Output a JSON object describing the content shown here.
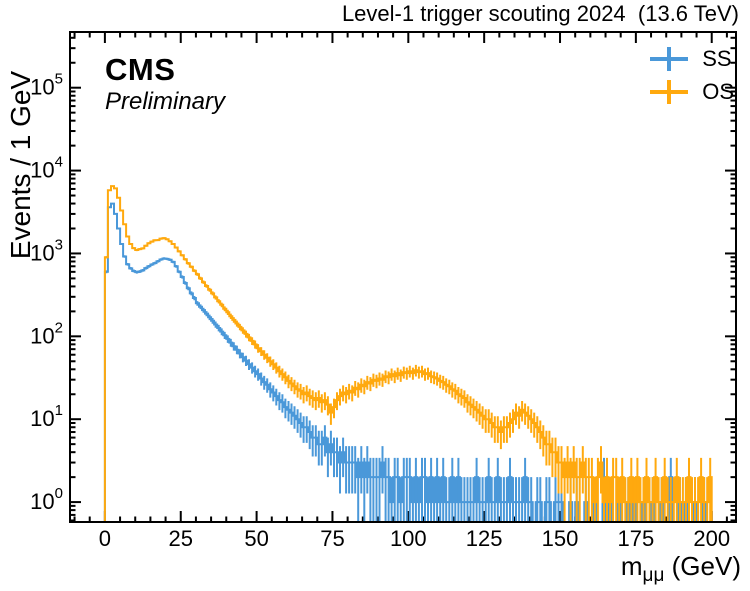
{
  "header": {
    "title": "Level-1 trigger scouting 2024  (13.6 TeV)"
  },
  "labels": {
    "experiment": "CMS",
    "status": "Preliminary"
  },
  "legend": {
    "position": "top-right",
    "items": [
      {
        "label": "SS",
        "color": "#4a98d9",
        "marker": "cross-icon"
      },
      {
        "label": "OS",
        "color": "#ffa90e",
        "marker": "cross-icon"
      }
    ]
  },
  "chart_data": {
    "type": "line",
    "subtype": "step-histogram-with-error-bars",
    "title": "Level-1 trigger scouting 2024  (13.6 TeV)",
    "xlabel": {
      "base": "m",
      "sub": "μμ",
      "unit": " (GeV)"
    },
    "ylabel": "Events / 1 GeV",
    "yscale": "log",
    "grid": false,
    "xlim": [
      -11.5,
      208
    ],
    "ylim": [
      0.575,
      470000
    ],
    "x_major_ticks": [
      0,
      25,
      50,
      75,
      100,
      125,
      150,
      175,
      200
    ],
    "x_minor_step": 5,
    "y_decades": [
      0,
      1,
      2,
      3,
      4,
      5
    ],
    "y_tick_base": "10",
    "bin_width": 1,
    "x_start": 0,
    "errors": "sqrt",
    "series": [
      {
        "name": "SS",
        "color": "#4a98d9",
        "values": [
          600,
          3600,
          4000,
          3000,
          2000,
          1300,
          920,
          740,
          660,
          615,
          595,
          605,
          625,
          665,
          700,
          735,
          765,
          805,
          845,
          870,
          860,
          840,
          790,
          700,
          600,
          520,
          440,
          380,
          330,
          290,
          250,
          228,
          207,
          188,
          170,
          154,
          139,
          126,
          114,
          103,
          93,
          84,
          76,
          69,
          62,
          56,
          51,
          46,
          42,
          38,
          35,
          31,
          28,
          26,
          23,
          21,
          19,
          17,
          16,
          14,
          13,
          12,
          11,
          10,
          9,
          8,
          8,
          7,
          6,
          6,
          5,
          5,
          6,
          4,
          5,
          4,
          4,
          3,
          4,
          3,
          3,
          3,
          3,
          2,
          3,
          2,
          3,
          2,
          2,
          2,
          2,
          3,
          2,
          2,
          1,
          2,
          2,
          1,
          2,
          2,
          2,
          1,
          2,
          1,
          2,
          2,
          1,
          2,
          1,
          2,
          1,
          2,
          1,
          1,
          2,
          1,
          2,
          1,
          1,
          1,
          1,
          1,
          2,
          1,
          1,
          1,
          2,
          1,
          1,
          2,
          1,
          1,
          1,
          2,
          1,
          1,
          1,
          1,
          2,
          1,
          1,
          0,
          1,
          1,
          0,
          1,
          1,
          0,
          1,
          1,
          1,
          0,
          0,
          1,
          0,
          1,
          0,
          0,
          1,
          0,
          0,
          1,
          0,
          0,
          2,
          0,
          1,
          0,
          0,
          1,
          0,
          0,
          1,
          0,
          1,
          0,
          0,
          1,
          0,
          0,
          1,
          0,
          0,
          1,
          0,
          0,
          2,
          0,
          0,
          1,
          0,
          1,
          0,
          0,
          1,
          0,
          0,
          1,
          0,
          0
        ]
      },
      {
        "name": "OS",
        "color": "#ffa90e",
        "values": [
          900,
          5800,
          6500,
          6100,
          4700,
          3300,
          2250,
          1600,
          1300,
          1160,
          1100,
          1130,
          1150,
          1240,
          1330,
          1390,
          1440,
          1450,
          1510,
          1530,
          1480,
          1400,
          1300,
          1180,
          1060,
          950,
          850,
          760,
          690,
          620,
          560,
          500,
          450,
          405,
          365,
          330,
          295,
          265,
          240,
          215,
          195,
          175,
          158,
          143,
          130,
          118,
          107,
          97,
          88,
          80,
          72,
          66,
          60,
          55,
          50,
          46,
          42,
          38,
          35,
          32,
          29,
          27,
          25,
          23,
          22,
          20,
          21,
          19,
          18,
          17,
          18,
          16,
          17,
          15,
          12,
          14,
          17,
          19,
          21,
          20,
          22,
          21,
          24,
          23,
          26,
          25,
          28,
          27,
          30,
          29,
          31,
          30,
          33,
          32,
          35,
          33,
          36,
          34,
          37,
          36,
          38,
          36,
          39,
          37,
          38,
          35,
          36,
          33,
          32,
          31,
          29,
          28,
          26,
          25,
          23,
          22,
          20,
          19,
          18,
          16,
          15,
          14,
          13,
          12,
          11,
          10,
          10,
          9,
          8,
          8,
          7,
          8,
          8,
          9,
          10,
          12,
          11,
          13,
          12,
          11,
          10,
          9,
          8,
          7,
          6,
          5,
          5,
          4,
          4,
          3,
          3,
          2,
          3,
          2,
          3,
          2,
          2,
          3,
          2,
          2,
          2,
          1,
          2,
          3,
          1,
          2,
          1,
          2,
          2,
          1,
          2,
          1,
          1,
          2,
          1,
          2,
          1,
          1,
          2,
          1,
          1,
          2,
          1,
          1,
          2,
          1,
          1,
          1,
          2,
          1,
          1,
          1,
          2,
          1,
          1,
          1,
          2,
          1,
          1,
          2
        ]
      }
    ]
  }
}
